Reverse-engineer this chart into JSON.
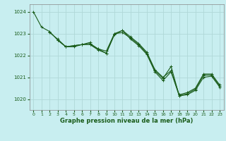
{
  "xlabel": "Graphe pression niveau de la mer (hPa)",
  "bg_color": "#c8eef0",
  "grid_color": "#b0d8d8",
  "line_color": "#1a5c1a",
  "ylim": [
    1019.5,
    1024.35
  ],
  "xlim": [
    -0.5,
    23.5
  ],
  "yticks": [
    1020,
    1021,
    1022,
    1023,
    1024
  ],
  "xticks": [
    0,
    1,
    2,
    3,
    4,
    5,
    6,
    7,
    8,
    9,
    10,
    11,
    12,
    13,
    14,
    15,
    16,
    17,
    18,
    19,
    20,
    21,
    22,
    23
  ],
  "series": [
    [
      1024.0,
      1023.3,
      1023.1,
      1022.7,
      1022.4,
      1022.4,
      1022.5,
      1022.5,
      1022.3,
      1022.2,
      1023.0,
      1023.15,
      1022.85,
      1022.55,
      1022.15,
      1021.35,
      1021.0,
      1021.3,
      1020.2,
      1020.3,
      1020.5,
      1021.15,
      1021.15,
      1020.65
    ],
    [
      null,
      null,
      null,
      1022.7,
      1022.4,
      1022.45,
      1022.5,
      1022.6,
      null,
      null,
      null,
      null,
      null,
      null,
      null,
      null,
      null,
      null,
      null,
      null,
      null,
      null,
      null,
      null
    ],
    [
      null,
      null,
      1023.05,
      1022.75,
      1022.4,
      1022.45,
      1022.5,
      1022.55,
      1022.3,
      1022.1,
      1023.0,
      1023.05,
      1022.8,
      1022.5,
      1022.1,
      1021.3,
      1020.95,
      1021.5,
      1020.15,
      1020.25,
      1020.45,
      1021.1,
      1021.1,
      1020.6
    ],
    [
      null,
      null,
      null,
      null,
      null,
      null,
      null,
      1022.5,
      1022.25,
      1022.1,
      1022.95,
      1023.15,
      1022.75,
      1022.45,
      1022.05,
      1021.25,
      1020.85,
      1021.25,
      1020.15,
      1020.2,
      1020.4,
      1021.0,
      1021.05,
      1020.55
    ]
  ]
}
